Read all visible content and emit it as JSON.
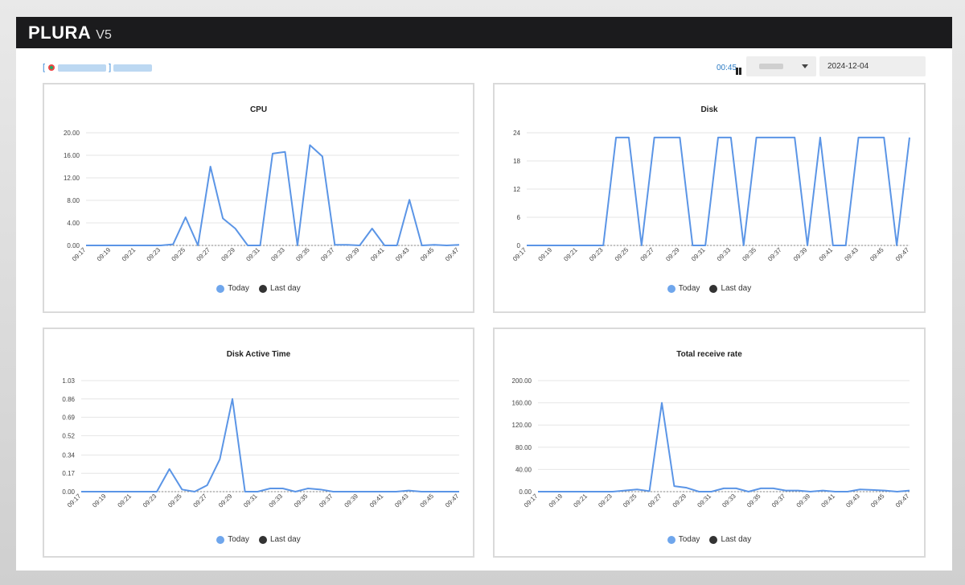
{
  "app": {
    "brand": "PLURA",
    "version": "V5"
  },
  "header": {
    "timer": "00:45",
    "date": "2024-12-04"
  },
  "colors": {
    "today": "#5b95e6",
    "last_day": "#333333",
    "topbar": "#1b1b1d"
  },
  "chart_data": [
    {
      "type": "line",
      "title": "CPU",
      "categories": [
        "09:17",
        "09:18",
        "09:19",
        "09:20",
        "09:21",
        "09:22",
        "09:23",
        "09:24",
        "09:25",
        "09:26",
        "09:27",
        "09:28",
        "09:29",
        "09:30",
        "09:31",
        "09:32",
        "09:33",
        "09:34",
        "09:35",
        "09:36",
        "09:37",
        "09:38",
        "09:39",
        "09:40",
        "09:41",
        "09:42",
        "09:43",
        "09:44",
        "09:45",
        "09:46",
        "09:47"
      ],
      "tick_labels": [
        "09:17",
        "09:19",
        "09:21",
        "09:23",
        "09:25",
        "09:27",
        "09:29",
        "09:31",
        "09:33",
        "09:35",
        "09:37",
        "09:39",
        "09:41",
        "09:43",
        "09:45",
        "09:47"
      ],
      "yticks": [
        "0.00",
        "4.00",
        "8.00",
        "12.00",
        "16.00",
        "20.00"
      ],
      "ylim": [
        0,
        20
      ],
      "series": [
        {
          "name": "Today",
          "values": [
            0,
            0,
            0,
            0,
            0,
            0,
            0,
            0.2,
            5,
            0,
            14,
            4.8,
            3,
            0,
            0,
            16.3,
            16.6,
            0,
            17.8,
            15.8,
            0.1,
            0.1,
            0,
            3,
            0,
            0,
            8.1,
            0,
            0.1,
            0,
            0.1
          ]
        },
        {
          "name": "Last day",
          "values": [
            0,
            0,
            0,
            0,
            0,
            0,
            0,
            0,
            0,
            0,
            0,
            0,
            0,
            0,
            0,
            0,
            0,
            0,
            0,
            0,
            0,
            0,
            0,
            0,
            0,
            0,
            0,
            0,
            0,
            0,
            0
          ]
        }
      ]
    },
    {
      "type": "line",
      "title": "Disk",
      "categories": [
        "09:17",
        "09:18",
        "09:19",
        "09:20",
        "09:21",
        "09:22",
        "09:23",
        "09:24",
        "09:25",
        "09:26",
        "09:27",
        "09:28",
        "09:29",
        "09:30",
        "09:31",
        "09:32",
        "09:33",
        "09:34",
        "09:35",
        "09:36",
        "09:37",
        "09:38",
        "09:39",
        "09:40",
        "09:41",
        "09:42",
        "09:43",
        "09:44",
        "09:45",
        "09:46",
        "09:47"
      ],
      "tick_labels": [
        "09:17",
        "09:19",
        "09:21",
        "09:23",
        "09:25",
        "09:27",
        "09:29",
        "09:31",
        "09:33",
        "09:35",
        "09:37",
        "09:39",
        "09:41",
        "09:43",
        "09:45",
        "09:47"
      ],
      "yticks": [
        "0",
        "6",
        "12",
        "18",
        "24"
      ],
      "ylim": [
        0,
        24
      ],
      "series": [
        {
          "name": "Today",
          "values": [
            0,
            0,
            0,
            0,
            0,
            0,
            0,
            23,
            23,
            0,
            23,
            23,
            23,
            0,
            0,
            23,
            23,
            0,
            23,
            23,
            23,
            23,
            0,
            23,
            0,
            0,
            23,
            23,
            23,
            0,
            23
          ]
        },
        {
          "name": "Last day",
          "values": [
            0,
            0,
            0,
            0,
            0,
            0,
            0,
            0,
            0,
            0,
            0,
            0,
            0,
            0,
            0,
            0,
            0,
            0,
            0,
            0,
            0,
            0,
            0,
            0,
            0,
            0,
            0,
            0,
            0,
            0,
            0
          ]
        }
      ]
    },
    {
      "type": "line",
      "title": "Disk Active Time",
      "categories": [
        "09:17",
        "09:18",
        "09:19",
        "09:20",
        "09:21",
        "09:22",
        "09:23",
        "09:24",
        "09:25",
        "09:26",
        "09:27",
        "09:28",
        "09:29",
        "09:30",
        "09:31",
        "09:32",
        "09:33",
        "09:34",
        "09:35",
        "09:36",
        "09:37",
        "09:38",
        "09:39",
        "09:40",
        "09:41",
        "09:42",
        "09:43",
        "09:44",
        "09:45",
        "09:46",
        "09:47"
      ],
      "tick_labels": [
        "09:17",
        "09:19",
        "09:21",
        "09:23",
        "09:25",
        "09:27",
        "09:29",
        "09:31",
        "09:33",
        "09:35",
        "09:37",
        "09:39",
        "09:41",
        "09:43",
        "09:45",
        "09:47"
      ],
      "yticks": [
        "0.00",
        "0.17",
        "0.34",
        "0.52",
        "0.69",
        "0.86",
        "1.03"
      ],
      "ylim": [
        0,
        1.03
      ],
      "series": [
        {
          "name": "Today",
          "values": [
            0,
            0,
            0,
            0,
            0,
            0,
            0,
            0.21,
            0.02,
            0,
            0.06,
            0.3,
            0.86,
            0,
            0,
            0.03,
            0.03,
            0,
            0.03,
            0.02,
            0,
            0,
            0,
            0,
            0,
            0,
            0.01,
            0,
            0,
            0,
            0
          ]
        },
        {
          "name": "Last day",
          "values": [
            0,
            0,
            0,
            0,
            0,
            0,
            0,
            0,
            0,
            0,
            0,
            0,
            0,
            0,
            0,
            0,
            0,
            0,
            0,
            0,
            0,
            0,
            0,
            0,
            0,
            0,
            0,
            0,
            0,
            0,
            0
          ]
        }
      ]
    },
    {
      "type": "line",
      "title": "Total receive rate",
      "categories": [
        "09:17",
        "09:18",
        "09:19",
        "09:20",
        "09:21",
        "09:22",
        "09:23",
        "09:24",
        "09:25",
        "09:26",
        "09:27",
        "09:28",
        "09:29",
        "09:30",
        "09:31",
        "09:32",
        "09:33",
        "09:34",
        "09:35",
        "09:36",
        "09:37",
        "09:38",
        "09:39",
        "09:40",
        "09:41",
        "09:42",
        "09:43",
        "09:44",
        "09:45",
        "09:46",
        "09:47"
      ],
      "tick_labels": [
        "09:17",
        "09:19",
        "09:21",
        "09:23",
        "09:25",
        "09:27",
        "09:29",
        "09:31",
        "09:33",
        "09:35",
        "09:37",
        "09:39",
        "09:41",
        "09:43",
        "09:45",
        "09:47"
      ],
      "yticks": [
        "0.00",
        "40.00",
        "80.00",
        "120.00",
        "160.00",
        "200.00"
      ],
      "ylim": [
        0,
        200
      ],
      "series": [
        {
          "name": "Today",
          "values": [
            0,
            0,
            0,
            0,
            0,
            0,
            0,
            2,
            4,
            1,
            160,
            10,
            7,
            0,
            0,
            6,
            6,
            0,
            6,
            6,
            2,
            2,
            0,
            2,
            0,
            0,
            4,
            3,
            2,
            0,
            2
          ]
        },
        {
          "name": "Last day",
          "values": [
            0,
            0,
            0,
            0,
            0,
            0,
            0,
            0,
            0,
            0,
            0,
            0,
            0,
            0,
            0,
            0,
            0,
            0,
            0,
            0,
            0,
            0,
            0,
            0,
            0,
            0,
            0,
            0,
            0,
            0,
            0
          ]
        }
      ]
    }
  ],
  "legend": {
    "today": "Today",
    "last_day": "Last day"
  }
}
